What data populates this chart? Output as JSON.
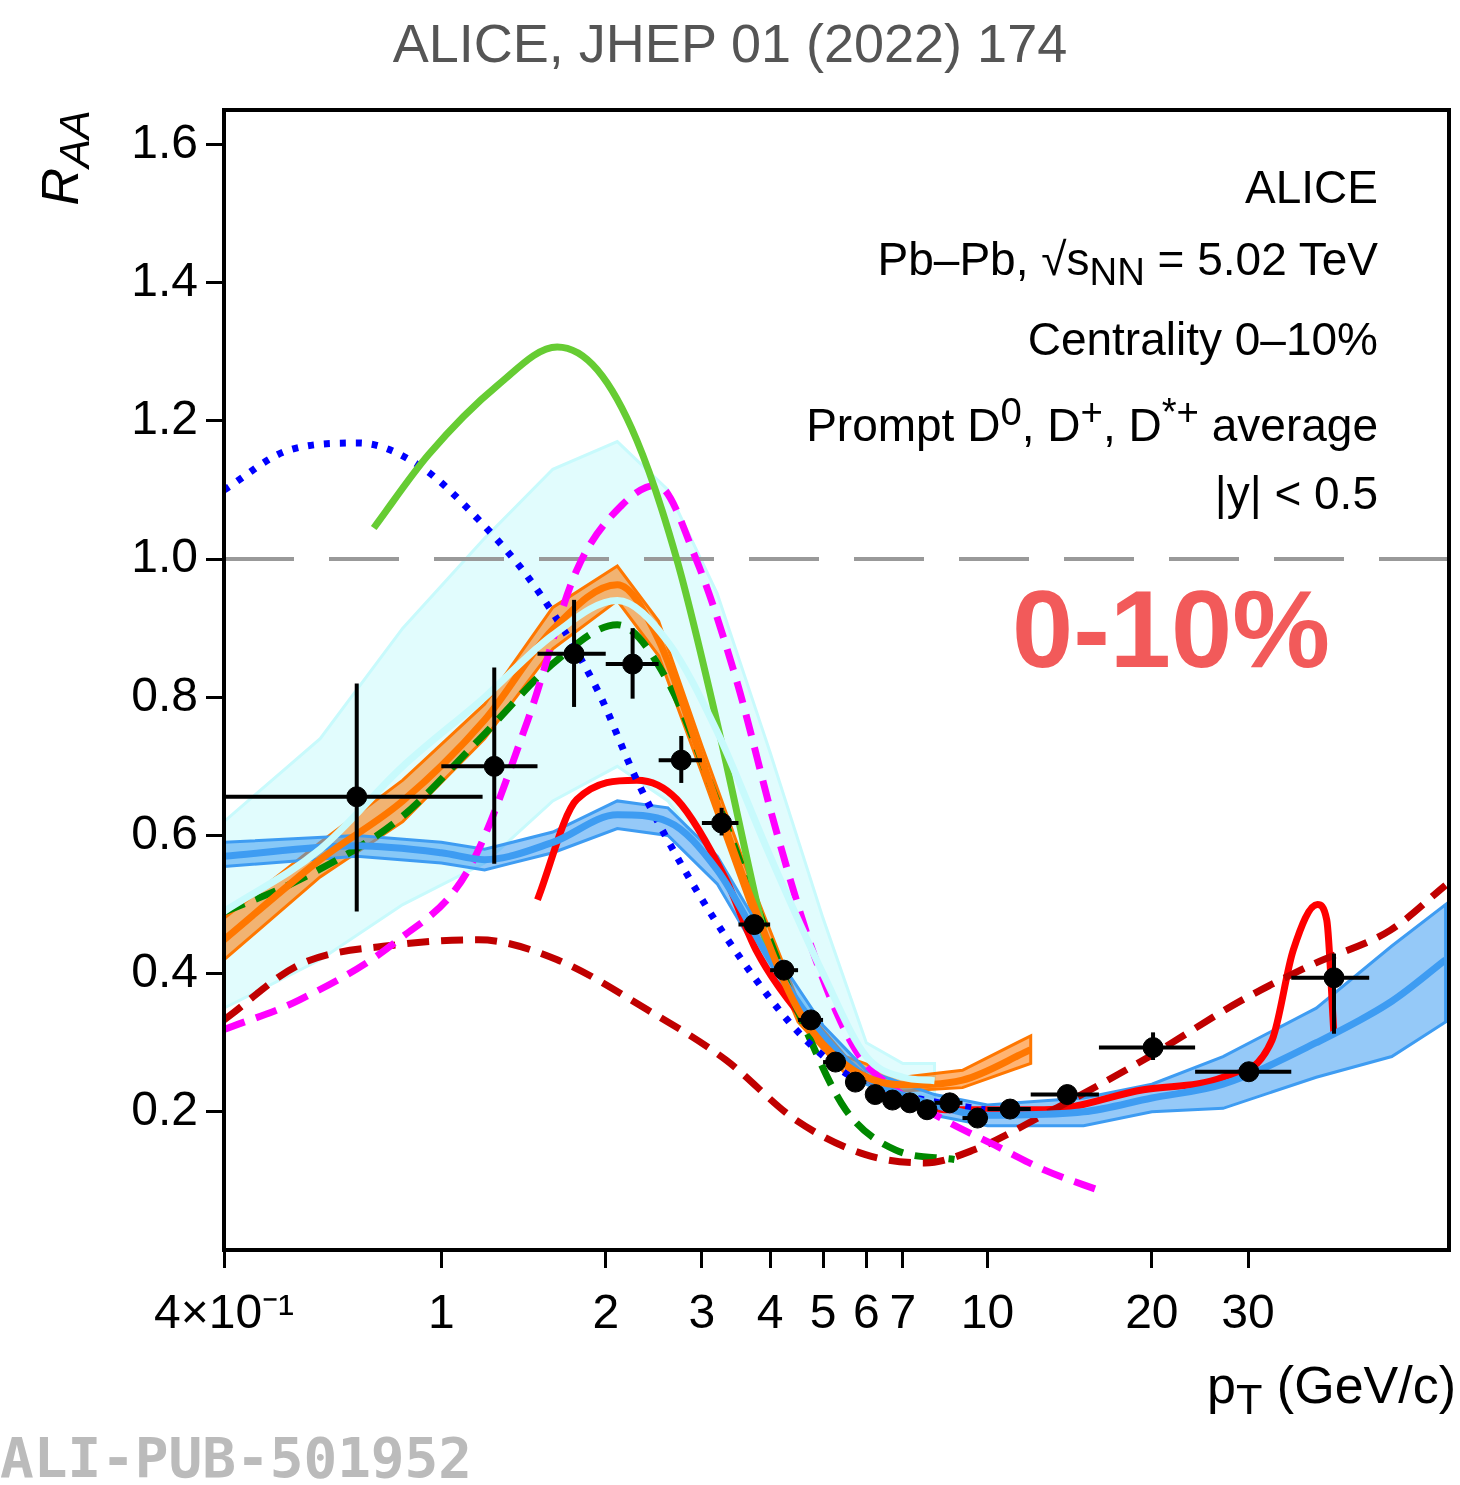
{
  "chart_data": {
    "type": "scatter",
    "title": "ALICE, JHEP 01 (2022) 174",
    "xlabel": "p$_{T}$ (GeV/c)",
    "ylabel": "R$_{AA}$",
    "log": "x",
    "xlim": [
      0.4,
      70
    ],
    "xticks": [
      {
        "value": 0.4,
        "label": "4×10⁻¹"
      },
      1,
      2,
      3,
      4,
      5,
      6,
      7,
      10,
      20,
      30
    ],
    "ylim": [
      0,
      1.65
    ],
    "yticks": [
      0.2,
      0.4,
      0.6,
      0.8,
      {
        "value": 1,
        "label": "1.0"
      },
      1.2,
      1.4,
      1.6
    ],
    "grid": false,
    "ref_lines": [
      {
        "axis": "y",
        "value": 1,
        "color": "#999999",
        "line_style": "dashed"
      }
    ],
    "annotations": [
      "ALICE",
      "Pb–Pb, √s$_{NN}$ = 5.02 TeV",
      "Centrality 0–10%",
      "Prompt D$^{0}$, D$^{+}$, D$^{*+}$ average",
      "|y| < 0.5",
      "0-10%",
      "ALI-PUB-501952"
    ],
    "series": [
      {
        "type": "line",
        "color": "#c8fafc",
        "line_style": "solid",
        "x": [
          0.4,
          0.6,
          0.85,
          1.2,
          1.6,
          2.1,
          2.6,
          3.2,
          4,
          5,
          6,
          7,
          8
        ],
        "values": [
          0.49,
          0.58,
          0.7,
          0.8,
          0.89,
          0.94,
          0.88,
          0.75,
          0.57,
          0.4,
          0.28,
          0.25,
          0.245
        ],
        "lower": [
          0.35,
          0.42,
          0.5,
          0.56,
          0.65,
          0.7,
          0.65,
          0.55,
          0.42,
          0.32,
          0.26,
          0.23,
          0.22
        ],
        "upper": [
          0.62,
          0.74,
          0.9,
          1.03,
          1.13,
          1.17,
          1.1,
          0.95,
          0.72,
          0.48,
          0.3,
          0.27,
          0.27
        ]
      },
      {
        "type": "line",
        "color": "#ff7700",
        "line_style": "solid",
        "x": [
          0.4,
          0.6,
          0.85,
          1.2,
          1.6,
          2.1,
          2.5,
          3,
          3.7,
          4.5,
          5.5,
          7,
          9,
          12
        ],
        "values": [
          0.449,
          0.565,
          0.65,
          0.767,
          0.898,
          0.963,
          0.883,
          0.709,
          0.507,
          0.348,
          0.268,
          0.239,
          0.246,
          0.29
        ],
        "lower": [
          0.42,
          0.54,
          0.62,
          0.74,
          0.87,
          0.94,
          0.86,
          0.69,
          0.49,
          0.33,
          0.255,
          0.23,
          0.235,
          0.27
        ],
        "upper": [
          0.48,
          0.59,
          0.68,
          0.79,
          0.93,
          0.99,
          0.91,
          0.73,
          0.53,
          0.36,
          0.28,
          0.25,
          0.26,
          0.31
        ]
      },
      {
        "type": "line",
        "color": "#3e9cf2",
        "line_style": "solid",
        "x": [
          0.4,
          0.7,
          1,
          1.2,
          1.6,
          2.1,
          2.6,
          3.2,
          4,
          5,
          6,
          8,
          10,
          15,
          20,
          27,
          40,
          55,
          69
        ],
        "values": [
          0.57,
          0.585,
          0.575,
          0.565,
          0.59,
          0.63,
          0.62,
          0.55,
          0.42,
          0.31,
          0.25,
          0.21,
          0.195,
          0.2,
          0.22,
          0.24,
          0.3,
          0.36,
          0.42
        ],
        "lower": [
          0.555,
          0.57,
          0.56,
          0.55,
          0.575,
          0.61,
          0.6,
          0.53,
          0.4,
          0.295,
          0.24,
          0.195,
          0.18,
          0.18,
          0.2,
          0.205,
          0.25,
          0.28,
          0.33
        ],
        "upper": [
          0.59,
          0.6,
          0.59,
          0.58,
          0.605,
          0.65,
          0.64,
          0.57,
          0.44,
          0.325,
          0.26,
          0.225,
          0.21,
          0.22,
          0.24,
          0.28,
          0.35,
          0.44,
          0.5
        ]
      },
      {
        "type": "line",
        "color": "#66cc33",
        "line_style": "solid",
        "x": [
          0.752,
          0.947,
          1.27,
          1.63,
          1.93,
          2.28,
          2.7,
          3.19,
          3.77,
          4.0
        ],
        "values": [
          1.045,
          1.151,
          1.252,
          1.307,
          1.274,
          1.172,
          0.999,
          0.767,
          0.507,
          0.42
        ]
      },
      {
        "type": "line",
        "color": "#0000ff",
        "line_style": "dotted",
        "x": [
          0.4,
          0.527,
          0.706,
          0.908,
          1.17,
          1.5,
          1.93,
          2.28,
          2.93,
          3.77,
          4.65,
          5.98,
          7.68,
          9.9
        ],
        "values": [
          1.1,
          1.158,
          1.168,
          1.136,
          1.057,
          0.955,
          0.811,
          0.68,
          0.521,
          0.391,
          0.304,
          0.239,
          0.217,
          0.203
        ]
      },
      {
        "type": "line",
        "color": "#ff00ff",
        "line_style": "dashed",
        "x": [
          0.4,
          0.55,
          0.835,
          1.12,
          1.44,
          1.77,
          2.14,
          2.48,
          2.93,
          3.47,
          4.1,
          4.85,
          5.73,
          6.78,
          8.35,
          10.3,
          12.7,
          16.3
        ],
        "values": [
          0.319,
          0.362,
          0.449,
          0.55,
          0.767,
          0.984,
          1.078,
          1.107,
          0.999,
          0.825,
          0.608,
          0.42,
          0.29,
          0.232,
          0.188,
          0.152,
          0.116,
          0.084
        ]
      },
      {
        "type": "line",
        "color": "#c00000",
        "line_style": "dashed",
        "x": [
          0.4,
          0.55,
          0.835,
          1.17,
          1.63,
          2.38,
          3.32,
          4.46,
          5.98,
          7.68,
          9.45,
          12.7,
          19.3,
          29.3,
          39.3,
          54.7,
          69
        ],
        "values": [
          0.333,
          0.413,
          0.442,
          0.449,
          0.42,
          0.348,
          0.275,
          0.188,
          0.138,
          0.126,
          0.145,
          0.196,
          0.275,
          0.362,
          0.413,
          0.463,
          0.528
        ]
      },
      {
        "type": "line",
        "color": "#008800",
        "line_style": "dashed",
        "x": [
          0.4,
          0.55,
          0.835,
          1.17,
          1.63,
          2.1,
          2.59,
          3.19,
          3.93,
          4.65,
          5.5,
          6.78,
          8.7
        ],
        "values": [
          0.489,
          0.536,
          0.623,
          0.738,
          0.854,
          0.905,
          0.825,
          0.652,
          0.463,
          0.319,
          0.203,
          0.145,
          0.131
        ]
      },
      {
        "type": "line",
        "color": "#ff0000",
        "line_style": "solid",
        "x": [
          1.5,
          1.77,
          2.28,
          2.7,
          3.32,
          3.77,
          4.46,
          5.73,
          8.35,
          12.7,
          19.3,
          27,
          33.2,
          36.3,
          40.2,
          41.8,
          43.1
        ],
        "values": [
          0.507,
          0.652,
          0.68,
          0.652,
          0.536,
          0.434,
          0.348,
          0.261,
          0.203,
          0.203,
          0.232,
          0.25,
          0.304,
          0.434,
          0.5,
          0.478,
          0.311
        ]
      },
      {
        "type": "scatter",
        "color": "#000000",
        "marker": "circle",
        "x": [
          0.7,
          1.25,
          1.75,
          2.24,
          2.75,
          3.26,
          3.74,
          4.24,
          4.75,
          5.27,
          5.73,
          6.23,
          6.7,
          7.21,
          7.75,
          8.53,
          9.59,
          11,
          14,
          20.1,
          30.1,
          43.1
        ],
        "values": [
          0.656,
          0.7,
          0.863,
          0.848,
          0.709,
          0.618,
          0.471,
          0.405,
          0.333,
          0.272,
          0.243,
          0.225,
          0.217,
          0.213,
          0.203,
          0.213,
          0.191,
          0.204,
          0.225,
          0.293,
          0.258,
          0.394
        ],
        "errors": [
          [
            0.49,
            0.82
          ],
          [
            0.559,
            0.843
          ],
          [
            0.786,
            0.941
          ],
          [
            0.798,
            0.9
          ],
          [
            0.676,
            0.744
          ],
          [
            0.6,
            0.64
          ],
          null,
          null,
          null,
          null,
          null,
          null,
          null,
          null,
          null,
          null,
          null,
          null,
          null,
          [
            0.275,
            0.315
          ],
          null,
          [
            0.313,
            0.429
          ]
        ],
        "xerrors": [
          [
            0.4,
            1.19
          ],
          [
            1,
            1.5
          ],
          [
            1.5,
            2
          ],
          [
            2,
            2.5
          ],
          [
            2.5,
            3
          ],
          [
            3,
            3.5
          ],
          [
            3.5,
            4
          ],
          [
            4,
            4.5
          ],
          [
            4.5,
            5
          ],
          [
            5,
            5.5
          ],
          [
            5.5,
            6
          ],
          [
            6,
            6.5
          ],
          null,
          null,
          [
            7.5,
            8
          ],
          [
            8,
            9
          ],
          [
            9,
            10
          ],
          [
            10,
            12
          ],
          [
            12,
            16
          ],
          [
            16,
            24
          ],
          [
            24,
            36
          ],
          [
            36,
            50
          ]
        ]
      }
    ]
  }
}
